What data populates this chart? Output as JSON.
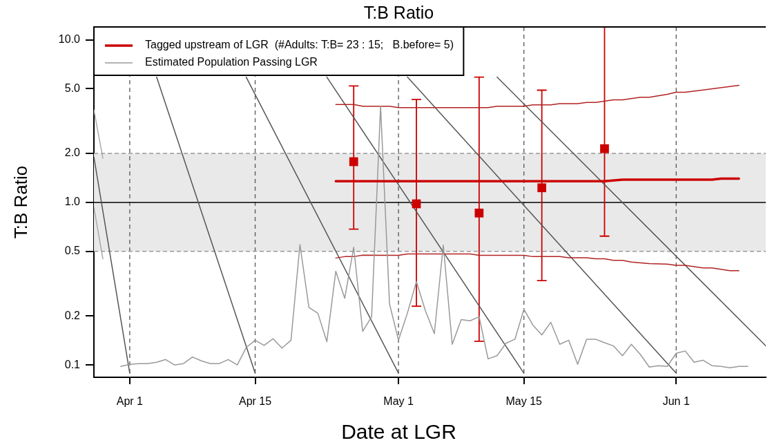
{
  "chart_data": {
    "type": "line",
    "title": "T:B Ratio",
    "xlabel": "Date at LGR",
    "ylabel": "T:B Ratio",
    "xlim": [
      "--03-28",
      "--06-11"
    ],
    "xticks": [
      {
        "value": "--04-01",
        "label": "Apr 1"
      },
      {
        "value": "--04-15",
        "label": "Apr 15"
      },
      {
        "value": "--05-01",
        "label": "May 1"
      },
      {
        "value": "--05-15",
        "label": "May 15"
      },
      {
        "value": "--06-01",
        "label": "Jun 1"
      }
    ],
    "ylim": [
      0.084,
      12
    ],
    "yticks": [
      0.1,
      0.2,
      0.5,
      {
        "value": 1,
        "label": "1.0"
      },
      {
        "value": 2,
        "label": "2.0"
      },
      {
        "value": 5,
        "label": "5.0"
      },
      {
        "value": 10,
        "label": "10.0"
      }
    ],
    "log": "y",
    "grid": "x",
    "legend": "top left",
    "ref_lines": [
      {
        "axis": "y",
        "value": 1,
        "color": "#000000",
        "line_style": "solid"
      },
      {
        "axis": "y",
        "value": 0.5,
        "color": "#999999",
        "line_style": "dashed"
      },
      {
        "axis": "y",
        "value": 2,
        "color": "#999999",
        "line_style": "dashed"
      }
    ],
    "bands": [
      {
        "axis": "y",
        "from": 0.5,
        "to": 2,
        "color": "#e9e9e9"
      }
    ],
    "series": [
      {
        "name": "Tagged upstream of LGR  (#Adults: T:B= 23 : 15;   B.before= 5)",
        "color": "#cc0000",
        "x": [
          "--04-24",
          "--05-24",
          "--05-26",
          "--06-05",
          "--06-06",
          "--06-08"
        ],
        "values": [
          1.35,
          1.35,
          1.38,
          1.38,
          1.4,
          1.4
        ]
      },
      {
        "name": "Estimated Population Passing LGR",
        "color": "#999999",
        "x": [
          "--03-31",
          "--04-01",
          "--04-02",
          "--04-03",
          "--04-04",
          "--04-05",
          "--04-06",
          "--04-07",
          "--04-08",
          "--04-09",
          "--04-10",
          "--04-11",
          "--04-12",
          "--04-13",
          "--04-14",
          "--04-15",
          "--04-16",
          "--04-17",
          "--04-18",
          "--04-19",
          "--04-20",
          "--04-21",
          "--04-22",
          "--04-23",
          "--04-24",
          "--04-25",
          "--04-26",
          "--04-27",
          "--04-28",
          "--04-29",
          "--04-30",
          "--05-01",
          "--05-02",
          "--05-03",
          "--05-04",
          "--05-05",
          "--05-06",
          "--05-07",
          "--05-08",
          "--05-09",
          "--05-10",
          "--05-11",
          "--05-12",
          "--05-13",
          "--05-14",
          "--05-15",
          "--05-16",
          "--05-17",
          "--05-18",
          "--05-19",
          "--05-20",
          "--05-21",
          "--05-22",
          "--05-23",
          "--05-24",
          "--05-25",
          "--05-26",
          "--05-27",
          "--05-28",
          "--05-29",
          "--05-30",
          "--05-31",
          "--06-01",
          "--06-02",
          "--06-03",
          "--06-04",
          "--06-05",
          "--06-06",
          "--06-07",
          "--06-08",
          "--06-09"
        ],
        "values": [
          0.098,
          0.101,
          0.102,
          0.102,
          0.104,
          0.108,
          0.1,
          0.102,
          0.112,
          0.106,
          0.102,
          0.102,
          0.108,
          0.1,
          0.128,
          0.142,
          0.132,
          0.145,
          0.127,
          0.142,
          0.55,
          0.226,
          0.208,
          0.139,
          0.377,
          0.257,
          0.53,
          0.161,
          0.198,
          3.9,
          0.237,
          0.142,
          0.209,
          0.326,
          0.216,
          0.156,
          0.546,
          0.134,
          0.19,
          0.187,
          0.198,
          0.109,
          0.114,
          0.136,
          0.144,
          0.22,
          0.176,
          0.153,
          0.183,
          0.134,
          0.142,
          0.101,
          0.144,
          0.144,
          0.137,
          0.131,
          0.114,
          0.134,
          0.116,
          0.097,
          0.099,
          0.098,
          0.118,
          0.122,
          0.104,
          0.107,
          0.099,
          0.098,
          0.096,
          0.098,
          0.098
        ]
      },
      {
        "type": "line",
        "color": "#b22222",
        "x": [
          "--04-24",
          "--04-26",
          "--04-27",
          "--04-30",
          "--05-01",
          "--05-11",
          "--05-12",
          "--05-15",
          "--05-16",
          "--05-18",
          "--05-19",
          "--05-21",
          "--05-22",
          "--05-23",
          "--05-25",
          "--05-26",
          "--05-28",
          "--05-29",
          "--05-31",
          "--06-01",
          "--06-02",
          "--06-08"
        ],
        "values": [
          4.0,
          4.0,
          3.9,
          3.9,
          3.83,
          3.83,
          3.9,
          3.9,
          3.98,
          3.98,
          4.05,
          4.05,
          4.12,
          4.12,
          4.27,
          4.27,
          4.43,
          4.43,
          4.62,
          4.76,
          4.76,
          5.25
        ]
      },
      {
        "type": "line",
        "color": "#b22222",
        "x": [
          "--04-24",
          "--04-25",
          "--04-26",
          "--04-27",
          "--05-01",
          "--05-02",
          "--05-09",
          "--05-10",
          "--05-15",
          "--05-16",
          "--05-19",
          "--05-20",
          "--05-22",
          "--05-23",
          "--05-24",
          "--05-25",
          "--05-26",
          "--05-27",
          "--05-29",
          "--05-31",
          "--06-01",
          "--06-02",
          "--06-04",
          "--06-05",
          "--06-07",
          "--06-08"
        ],
        "values": [
          0.455,
          0.464,
          0.464,
          0.474,
          0.473,
          0.482,
          0.482,
          0.473,
          0.473,
          0.464,
          0.464,
          0.457,
          0.457,
          0.45,
          0.45,
          0.44,
          0.44,
          0.43,
          0.42,
          0.417,
          0.41,
          0.41,
          0.395,
          0.395,
          0.38,
          0.38
        ]
      },
      {
        "type": "scatter",
        "color": "#cc0000",
        "marker": "square",
        "x": [
          "--04-26",
          "--05-03",
          "--05-10",
          "--05-17",
          "--05-24"
        ],
        "values": [
          1.78,
          0.98,
          0.86,
          1.23,
          2.14
        ],
        "errors": [
          [
            0.685,
            5.2
          ],
          [
            0.23,
            4.3
          ],
          [
            0.14,
            5.9
          ],
          [
            0.33,
            4.9
          ],
          [
            0.62,
            12
          ]
        ]
      },
      {
        "type": "line",
        "color": "#555555",
        "x": [
          "--03-28",
          "--04-01"
        ],
        "values": [
          1.9,
          0.089
        ]
      },
      {
        "type": "line",
        "color": "#555555",
        "x": [
          "--04-04",
          "--04-15"
        ],
        "values": [
          5.9,
          0.089
        ]
      },
      {
        "type": "line",
        "color": "#555555",
        "x": [
          "--04-14",
          "--05-01"
        ],
        "values": [
          5.9,
          0.089
        ]
      },
      {
        "type": "line",
        "color": "#555555",
        "x": [
          "--04-23",
          "--05-15"
        ],
        "values": [
          5.9,
          0.089
        ]
      },
      {
        "type": "line",
        "color": "#555555",
        "x": [
          "--05-02",
          "--06-01"
        ],
        "values": [
          5.9,
          0.089
        ]
      },
      {
        "type": "line",
        "color": "#555555",
        "x": [
          "--05-12",
          "--06-11"
        ],
        "values": [
          5.9,
          0.131
        ]
      },
      {
        "type": "line",
        "color": "#aaaaaa",
        "x": [
          "--03-28",
          "--03-29"
        ],
        "values": [
          3.7,
          1.87
        ]
      },
      {
        "type": "line",
        "color": "#aaaaaa",
        "x": [
          "--03-28",
          "--03-29"
        ],
        "values": [
          0.93,
          0.45
        ]
      }
    ]
  }
}
